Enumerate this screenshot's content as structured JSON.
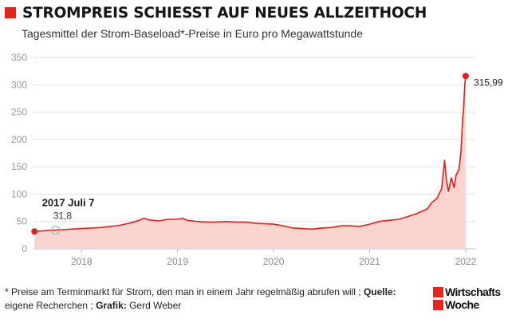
{
  "header": {
    "title": "STROMPREIS SCHIESST AUF NEUES ALLZEITHOCH",
    "subtitle": "Tagesmittel der Strom-Baseload*-Preise in Euro pro Megawattstunde"
  },
  "footnote": {
    "text1": "* Preise am Terminmarkt für Strom, den man in einem Jahr regelmäßig abrufen will ; ",
    "source_label": "Quelle:",
    "source_text": " eigene Recherchen ; ",
    "graphic_label": "Grafik:",
    "graphic_text": " Gerd Weber"
  },
  "logo": {
    "line1": "Wirtschafts",
    "line2": "Woche"
  },
  "colors": {
    "accent": "#e4251b",
    "line": "#e02020",
    "area": "#fad4cd",
    "grid": "#e3e3e3"
  },
  "chart_data": {
    "type": "area",
    "xlabel": "",
    "ylabel": "",
    "ylim": [
      0,
      350
    ],
    "yticks": [
      0,
      50,
      100,
      150,
      200,
      250,
      300,
      350
    ],
    "xlim": [
      2017.5,
      2022.1
    ],
    "xticks": [
      {
        "label": "2018",
        "x": 2018.0
      },
      {
        "label": "2019",
        "x": 2019.0
      },
      {
        "label": "2020",
        "x": 2020.0
      },
      {
        "label": "2021",
        "x": 2021.0
      },
      {
        "label": "2022",
        "x": 2022.0
      }
    ],
    "grid": true,
    "series": [
      {
        "points": [
          [
            2017.51,
            31.8
          ],
          [
            2017.6,
            33
          ],
          [
            2017.7,
            34
          ],
          [
            2017.8,
            35
          ],
          [
            2017.9,
            36
          ],
          [
            2018.0,
            37
          ],
          [
            2018.1,
            38
          ],
          [
            2018.2,
            39
          ],
          [
            2018.3,
            41
          ],
          [
            2018.4,
            43
          ],
          [
            2018.5,
            47
          ],
          [
            2018.6,
            52
          ],
          [
            2018.65,
            56
          ],
          [
            2018.7,
            53
          ],
          [
            2018.8,
            51
          ],
          [
            2018.9,
            54
          ],
          [
            2019.0,
            54
          ],
          [
            2019.05,
            56
          ],
          [
            2019.1,
            52
          ],
          [
            2019.2,
            50
          ],
          [
            2019.3,
            49
          ],
          [
            2019.4,
            49
          ],
          [
            2019.5,
            50
          ],
          [
            2019.6,
            49
          ],
          [
            2019.7,
            49
          ],
          [
            2019.8,
            47
          ],
          [
            2019.9,
            46
          ],
          [
            2020.0,
            45
          ],
          [
            2020.1,
            42
          ],
          [
            2020.2,
            38
          ],
          [
            2020.3,
            37
          ],
          [
            2020.4,
            36
          ],
          [
            2020.5,
            38
          ],
          [
            2020.6,
            39
          ],
          [
            2020.7,
            42
          ],
          [
            2020.8,
            42
          ],
          [
            2020.9,
            41
          ],
          [
            2021.0,
            45
          ],
          [
            2021.1,
            50
          ],
          [
            2021.2,
            52
          ],
          [
            2021.3,
            54
          ],
          [
            2021.4,
            59
          ],
          [
            2021.5,
            65
          ],
          [
            2021.6,
            73
          ],
          [
            2021.65,
            85
          ],
          [
            2021.7,
            92
          ],
          [
            2021.75,
            110
          ],
          [
            2021.78,
            162
          ],
          [
            2021.8,
            125
          ],
          [
            2021.82,
            105
          ],
          [
            2021.85,
            130
          ],
          [
            2021.88,
            112
          ],
          [
            2021.9,
            135
          ],
          [
            2021.93,
            145
          ],
          [
            2021.95,
            175
          ],
          [
            2021.97,
            240
          ],
          [
            2021.98,
            260
          ],
          [
            2021.99,
            300
          ],
          [
            2022.0,
            315.99
          ]
        ]
      }
    ],
    "annotations": [
      {
        "label": "2017 Juli 7",
        "value_label": "31,8",
        "x": 2017.51,
        "y": 31.8
      },
      {
        "value_label": "315,99",
        "x": 2022.0,
        "y": 315.99
      }
    ]
  }
}
